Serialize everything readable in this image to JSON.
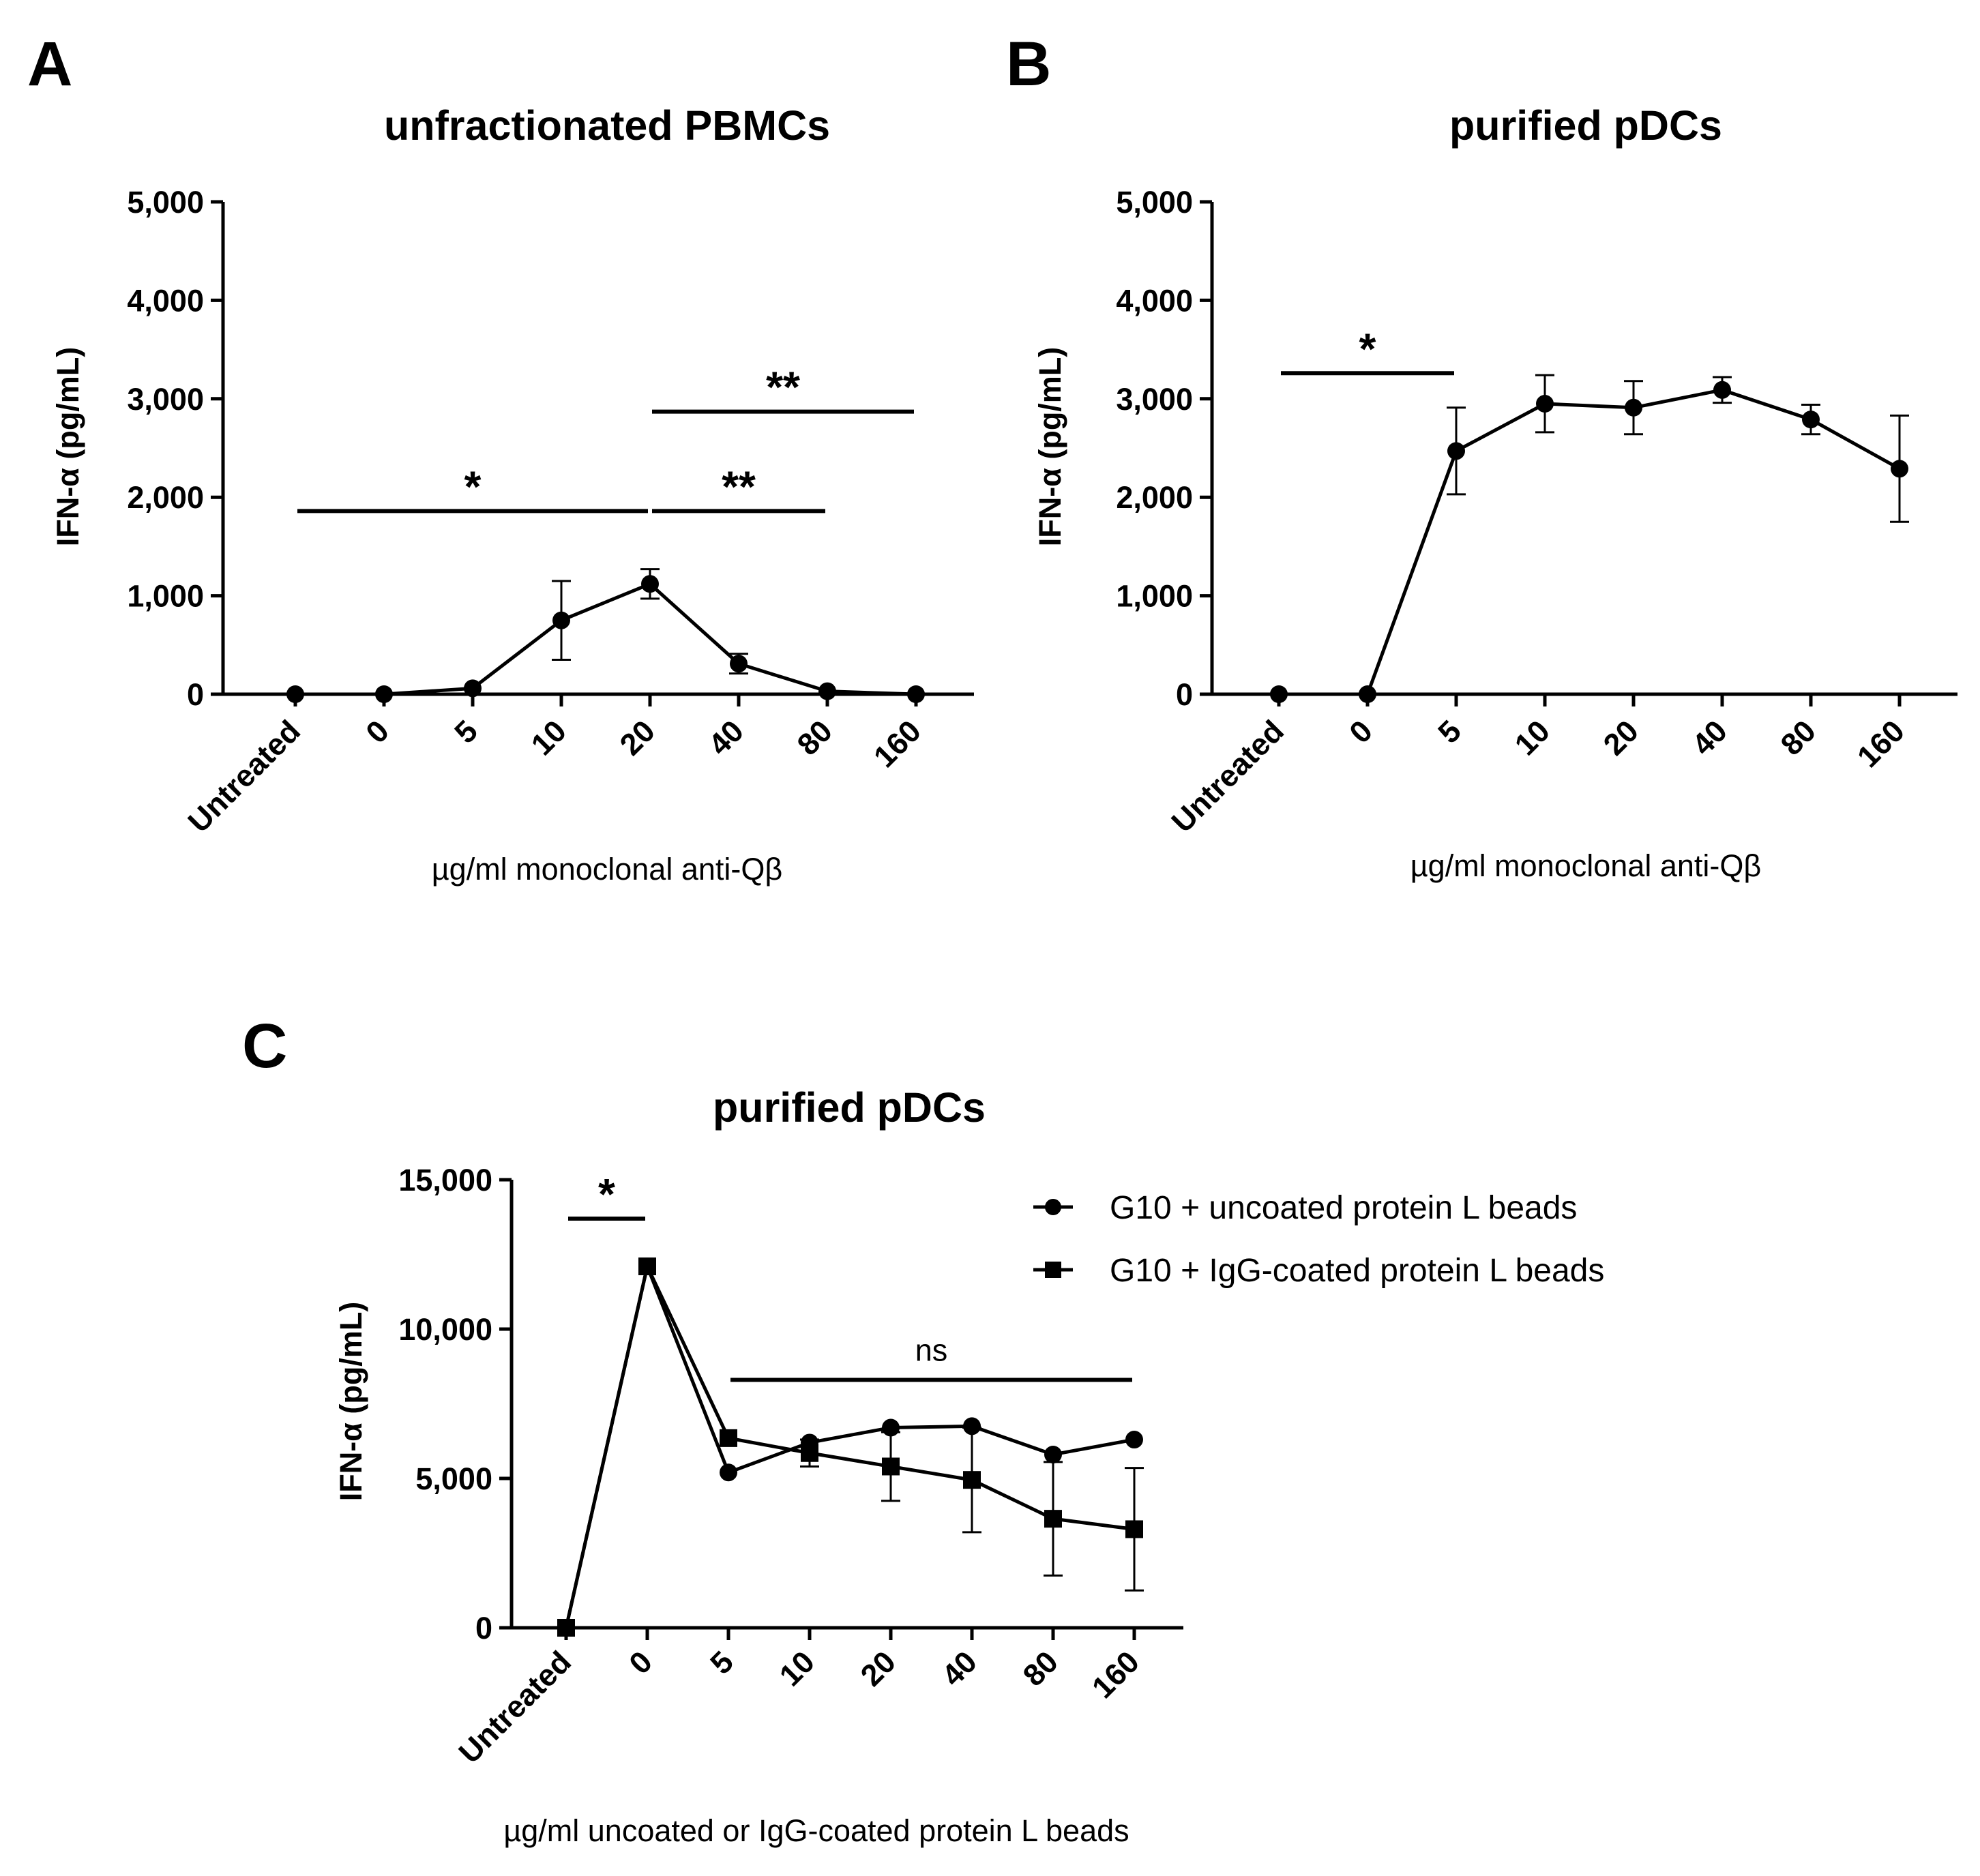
{
  "chart_data": [
    {
      "type": "line",
      "panel_label": "A",
      "title": "unfractionated PBMCs",
      "xlabel": "µg/ml monoclonal anti-Qβ",
      "ylabel": "IFN-α (pg/mL)",
      "ylim": [
        0,
        5000
      ],
      "yticks": [
        0,
        1000,
        2000,
        3000,
        4000,
        5000
      ],
      "ytick_labels": [
        "0",
        "1,000",
        "2,000",
        "3,000",
        "4,000",
        "5,000"
      ],
      "categories": [
        "Untreated",
        "0",
        "5",
        "10",
        "20",
        "40",
        "80",
        "160"
      ],
      "series": [
        {
          "marker": "circle",
          "values": [
            0,
            0,
            60,
            750,
            1120,
            310,
            30,
            0
          ],
          "error": [
            0,
            0,
            0,
            400,
            150,
            100,
            0,
            0
          ]
        }
      ],
      "significance": [
        {
          "from": 0,
          "to": 4,
          "value": 1860,
          "label": "*"
        },
        {
          "from": 4,
          "to": 6,
          "value": 1860,
          "label": "**"
        },
        {
          "from": 4,
          "to": 7,
          "value": 2870,
          "label": "**"
        }
      ],
      "grid": false
    },
    {
      "type": "line",
      "panel_label": "B",
      "title": "purified pDCs",
      "xlabel": "µg/ml monoclonal anti-Qβ",
      "ylabel": "IFN-α (pg/mL)",
      "ylim": [
        0,
        5000
      ],
      "yticks": [
        0,
        1000,
        2000,
        3000,
        4000,
        5000
      ],
      "ytick_labels": [
        "0",
        "1,000",
        "2,000",
        "3,000",
        "4,000",
        "5,000"
      ],
      "categories": [
        "Untreated",
        "0",
        "5",
        "10",
        "20",
        "40",
        "80",
        "160"
      ],
      "series": [
        {
          "marker": "circle",
          "values": [
            0,
            0,
            2470,
            2950,
            2910,
            3090,
            2790,
            2290
          ],
          "error": [
            0,
            0,
            440,
            290,
            270,
            130,
            150,
            540
          ]
        }
      ],
      "significance": [
        {
          "from": 0,
          "to": 2,
          "value": 3260,
          "label": "*"
        }
      ],
      "grid": false
    },
    {
      "type": "line",
      "panel_label": "C",
      "title": "purified pDCs",
      "xlabel": "µg/ml uncoated or IgG-coated protein L beads",
      "ylabel": "IFN-α (pg/mL)",
      "ylim": [
        0,
        15000
      ],
      "yticks": [
        0,
        5000,
        10000,
        15000
      ],
      "ytick_labels": [
        "0",
        "5,000",
        "10,000",
        "15,000"
      ],
      "categories": [
        "Untreated",
        "0",
        "5",
        "10",
        "20",
        "40",
        "80",
        "160"
      ],
      "series": [
        {
          "name": "G10 + uncoated protein L beads",
          "marker": "circle",
          "values": [
            0,
            12100,
            5200,
            6200,
            6700,
            6750,
            5800,
            6300
          ],
          "error": [
            0,
            0,
            0,
            0,
            0,
            0,
            0,
            0
          ]
        },
        {
          "name": "G10 + IgG-coated protein L beads",
          "marker": "square",
          "values": [
            0,
            12100,
            6350,
            5850,
            5400,
            4950,
            3650,
            3300
          ],
          "error": [
            0,
            0,
            0,
            450,
            1150,
            1750,
            1900,
            2050
          ]
        }
      ],
      "significance": [
        {
          "from": 0,
          "to": 1,
          "value": 13700,
          "label": "*"
        },
        {
          "from": 2,
          "to": 7,
          "value": 8300,
          "label": "ns"
        }
      ],
      "legend": "top-right",
      "grid": false
    }
  ]
}
